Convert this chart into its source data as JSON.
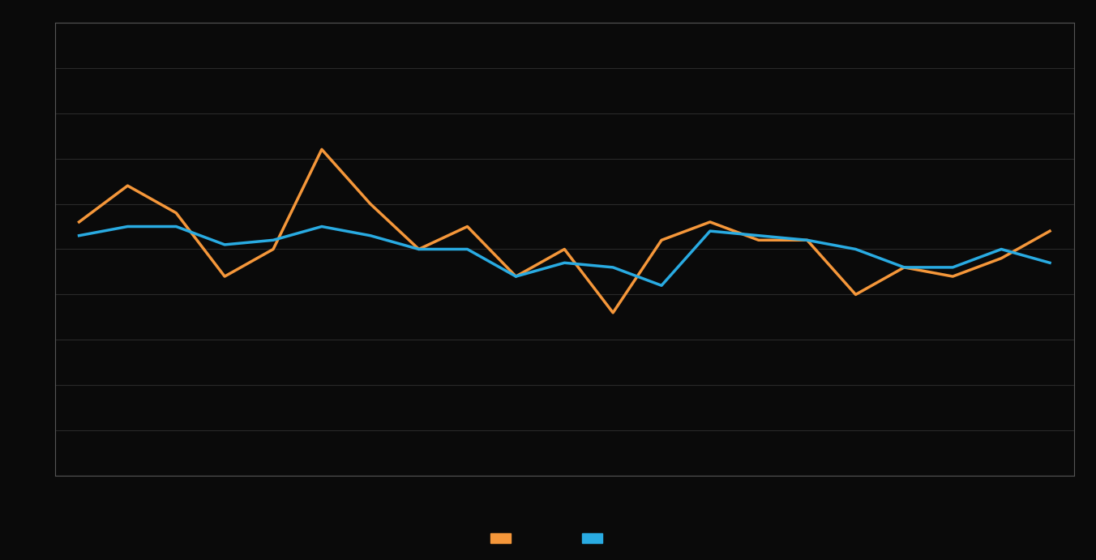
{
  "orange_y": [
    56,
    64,
    58,
    44,
    50,
    72,
    60,
    50,
    55,
    44,
    50,
    36,
    52,
    56,
    52,
    52,
    40,
    46,
    44,
    48,
    54
  ],
  "blue_y": [
    53,
    55,
    55,
    51,
    52,
    55,
    53,
    50,
    50,
    44,
    47,
    46,
    42,
    54,
    53,
    52,
    50,
    46,
    46,
    50,
    47
  ],
  "orange_color": "#f5973a",
  "blue_color": "#29abe2",
  "background_color": "#0a0a0a",
  "grid_color": "#2a2a2a",
  "line_width": 2.5,
  "ylim": [
    0,
    100
  ],
  "ytick_count": 10,
  "legend_orange_label": "",
  "legend_blue_label": ""
}
